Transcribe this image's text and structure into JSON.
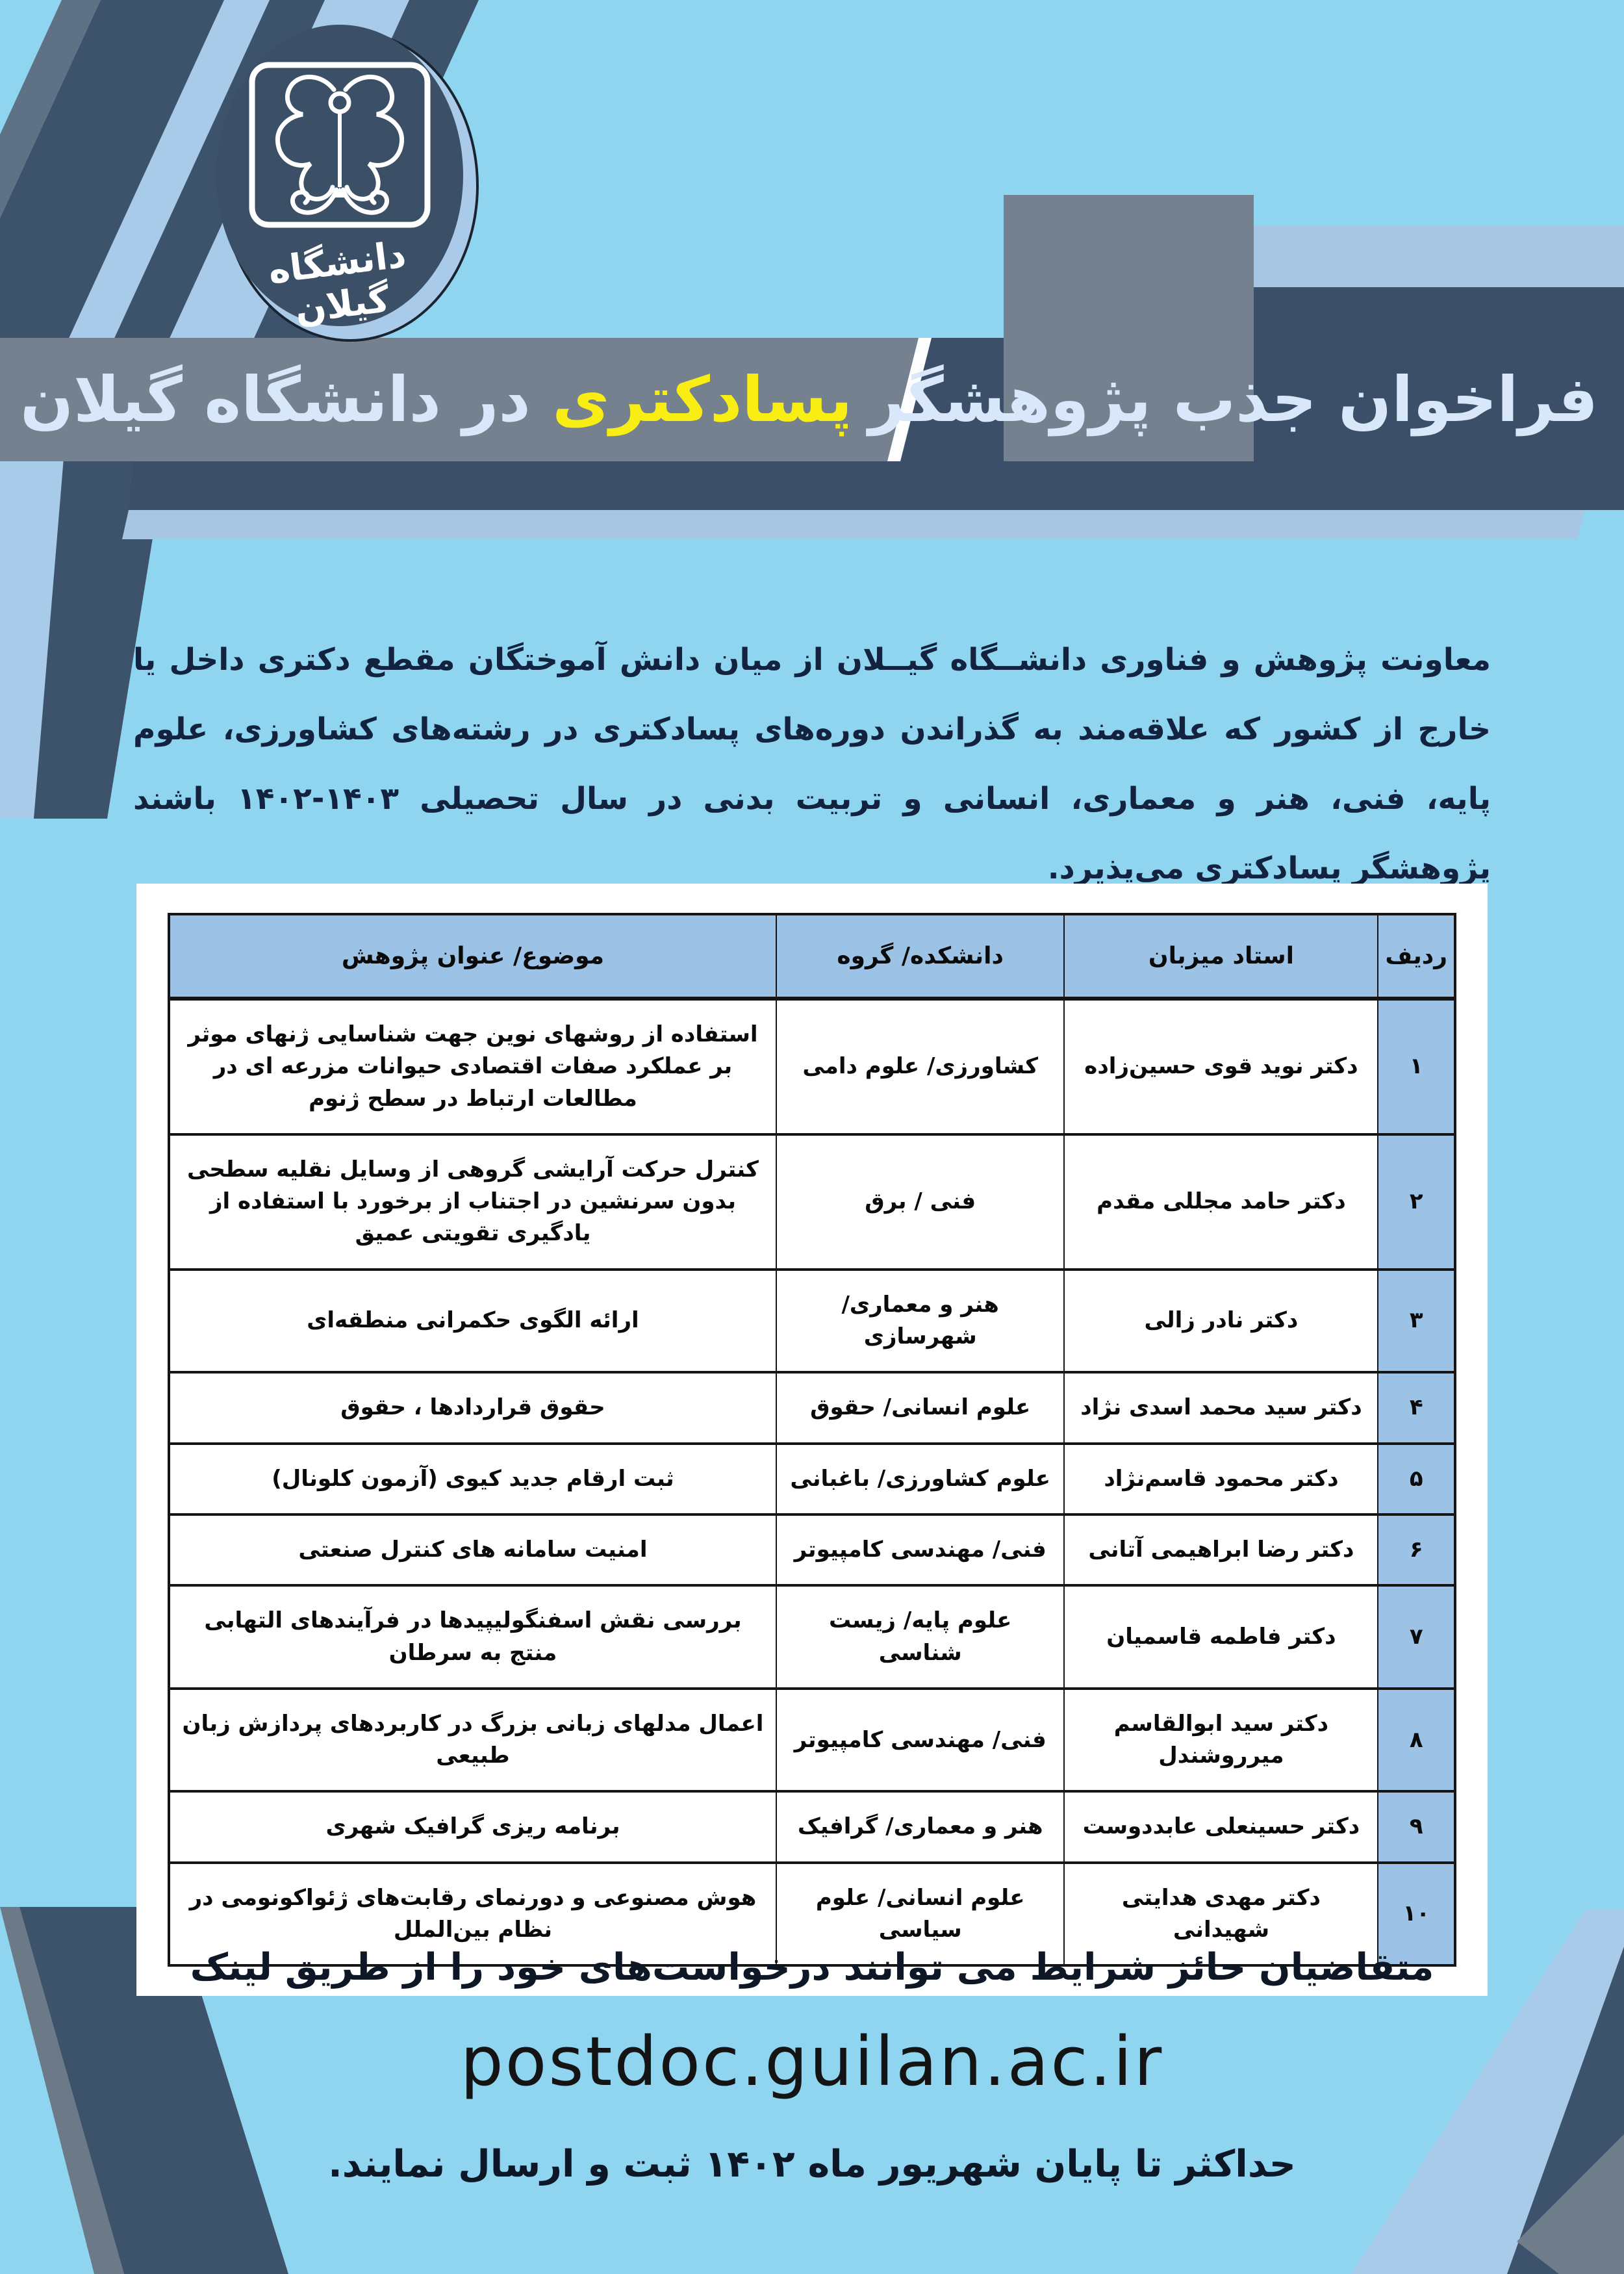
{
  "logo": {
    "university_name": "دانشگاه گیلان",
    "emblem_icon": "guilan-university-emblem"
  },
  "title": {
    "right": "فراخوان جذب پژوهشگر",
    "highlight": "پسادکتری",
    "left_rest": " در دانشگاه گیلان"
  },
  "intro": {
    "text": "معاونت پژوهش و فناوری دانشــگاه گیــلان از میان دانش آموختگان مقطع دکتری داخل یا خارج از کشور که علاقه‌مند به گذراندن دوره‌های پسادکتری در رشته‌های کشاورزی، علوم پایه، فنی، هنر و معماری، انسانی و تربیت بدنی در سال تحصیلی ۱۴۰۳-۱۴۰۲ باشند پژوهشگر پسادکتری می‌پذیرد."
  },
  "table": {
    "headers": {
      "row": "ردیف",
      "host_professor": "استاد میزبان",
      "faculty_group": "دانشکده/ گروه",
      "topic": "موضوع/ عنوان پژوهش"
    },
    "rows": [
      {
        "row": "۱",
        "professor": "دکتر نوید قوی حسین‌زاده",
        "faculty": "کشاورزی/ علوم دامی",
        "topic": "استفاده از روشهای نوین جهت شناسایی ژنهای موثر بر عملکرد صفات اقتصادی حیوانات مزرعه ای در مطالعات ارتباط در سطح ژنوم"
      },
      {
        "row": "۲",
        "professor": "دکتر حامد مجللی مقدم",
        "faculty": "فنی / برق",
        "topic": "کنترل حرکت آرایشی گروهی از وسایل نقلیه سطحی بدون سرنشین در اجتناب از برخورد با استفاده از یادگیری تقویتی عمیق"
      },
      {
        "row": "۳",
        "professor": "دکتر نادر زالی",
        "faculty": "هنر و معماری/ شهرسازی",
        "topic": "ارائه الگوی حکمرانی منطقه‌ای"
      },
      {
        "row": "۴",
        "professor": "دکتر سید محمد اسدی نژاد",
        "faculty": "علوم انسانی/ حقوق",
        "topic": "حقوق قراردادها ، حقوق"
      },
      {
        "row": "۵",
        "professor": "دکتر محمود قاسم‌نژاد",
        "faculty": "علوم کشاورزی/ باغبانی",
        "topic": "ثبت ارقام جدید کیوی (آزمون کلونال)"
      },
      {
        "row": "۶",
        "professor": "دکتر رضا ابراهیمی آتانی",
        "faculty": "فنی/ مهندسی کامپیوتر",
        "topic": "امنیت سامانه های کنترل صنعتی"
      },
      {
        "row": "۷",
        "professor": "دکتر فاطمه قاسمیان",
        "faculty": "علوم پایه/ زیست شناسی",
        "topic": "بررسی نقش اسفنگولیپیدها در فرآیندهای التهابی منتج به سرطان"
      },
      {
        "row": "۸",
        "professor": "دکتر سید ابوالقاسم میرروشندل",
        "faculty": "فنی/ مهندسی کامپیوتر",
        "topic": "اعمال مدلهای زبانی بزرگ در کاربردهای پردازش زبان طبیعی"
      },
      {
        "row": "۹",
        "professor": "دکتر حسینعلی عابددوست",
        "faculty": "هنر و معماری/ گرافیک",
        "topic": "برنامه ریزی گرافیک شهری"
      },
      {
        "row": "۱۰",
        "professor": "دکتر مهدی هدایتی شهیدانی",
        "faculty": "علوم انسانی/ علوم سیاسی",
        "topic": "هوش مصنوعی و دورنمای رقابت‌های ژئواکونومی در نظام بین‌الملل"
      }
    ]
  },
  "footer": {
    "line1": "متقاضیان حائز شرایط می توانند درخواست‌های خود را از طریق لینک",
    "link": "postdoc.guilan.ac.ir",
    "line2": "حداکثر تا پایان شهریور ماه ۱۴۰۲ ثبت و ارسال نمایند."
  },
  "colors": {
    "sky": "#8FD5F0",
    "dark_slate": "#3B5068",
    "band_gray": "#75818E",
    "light_blue_stripe": "#A9CBEA",
    "title_text": "#D8E7F9",
    "highlight_yellow": "#F8EE13",
    "table_header_bg": "#9CC3E5",
    "body_text": "#13233F"
  }
}
